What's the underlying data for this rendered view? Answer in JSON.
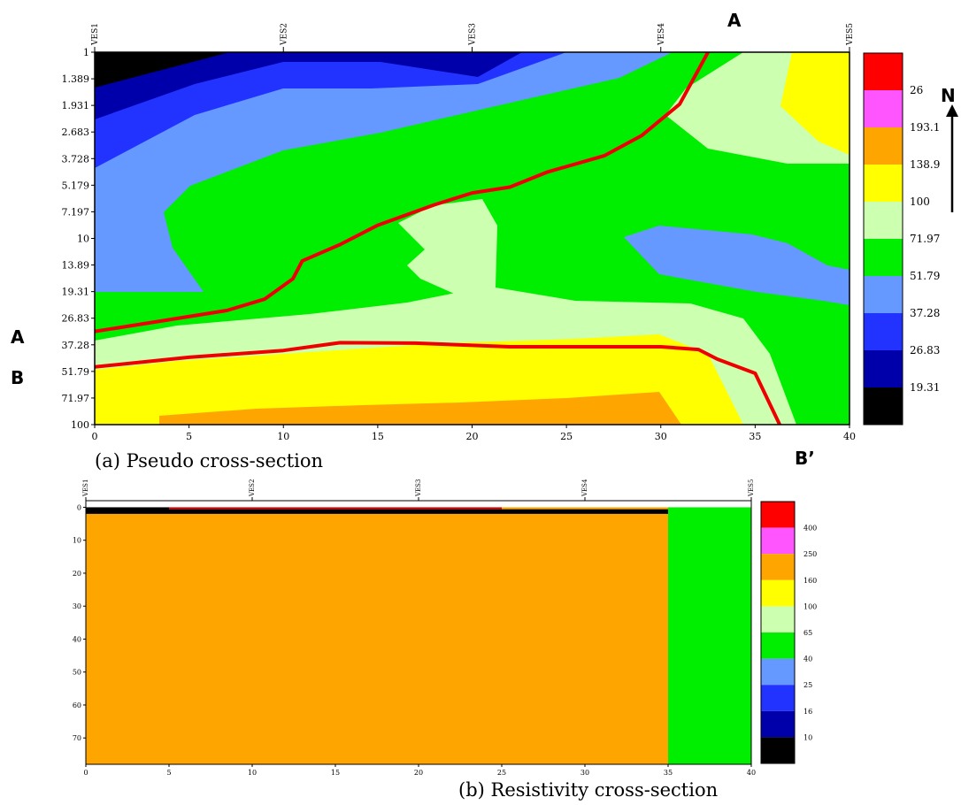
{
  "markers": {
    "a_top": "A",
    "a_left": "A",
    "b_left": "B",
    "b_prime": "B’",
    "north": "N"
  },
  "chart_data": [
    {
      "type": "heatmap",
      "caption": "(a) Pseudo cross-section",
      "x_ticks": [
        0,
        5,
        10,
        15,
        20,
        25,
        30,
        35,
        40
      ],
      "xlim": [
        0,
        40
      ],
      "y_ticks": [
        "1",
        "1.389",
        "1.931",
        "2.683",
        "3.728",
        "5.179",
        "7.197",
        "10",
        "13.89",
        "19.31",
        "26.83",
        "37.28",
        "51.79",
        "71.97",
        "100"
      ],
      "y_scale": "log",
      "ylim": [
        1,
        100
      ],
      "stations": [
        {
          "label": "VES1",
          "x": 0
        },
        {
          "label": "VES2",
          "x": 10
        },
        {
          "label": "VES3",
          "x": 20
        },
        {
          "label": "VES4",
          "x": 30
        },
        {
          "label": "VES5",
          "x": 40
        }
      ],
      "legend": {
        "placement": "right",
        "colors": [
          "#ff0000",
          "#ff55ff",
          "#ffa500",
          "#ffff00",
          "#ccffb0",
          "#00ee00",
          "#6699ff",
          "#2233ff",
          "#0000aa",
          "#000000"
        ],
        "labels": [
          "26",
          "193.1",
          "138.9",
          "100",
          "71.97",
          "51.79",
          "37.28",
          "26.83",
          "19.31"
        ]
      },
      "colors": {
        "black": "#000000",
        "navy": "#0000aa",
        "blue": "#2233ff",
        "lightblue": "#6699ff",
        "green": "#00ee00",
        "lightgreen": "#ccffb0",
        "yellow": "#ffff00",
        "orange": "#ffa500",
        "boundary": "#ee0000"
      },
      "boundary_lines": [
        {
          "name": "A–A",
          "points": [
            [
              0,
              31.6
            ],
            [
              3,
              28.3
            ],
            [
              7,
              24.4
            ],
            [
              9,
              21.2
            ],
            [
              10.5,
              16.5
            ],
            [
              11,
              13.2
            ],
            [
              13,
              10.8
            ],
            [
              15,
              8.5
            ],
            [
              18,
              6.6
            ],
            [
              20,
              5.7
            ],
            [
              22,
              5.3
            ],
            [
              24,
              4.4
            ],
            [
              27,
              3.6
            ],
            [
              29,
              2.8
            ],
            [
              31,
              1.9
            ],
            [
              32.5,
              1.0
            ]
          ]
        },
        {
          "name": "B–B’",
          "points": [
            [
              0,
              49.0
            ],
            [
              5,
              43.5
            ],
            [
              10,
              40.0
            ],
            [
              13,
              36.3
            ],
            [
              17,
              36.5
            ],
            [
              22,
              38.2
            ],
            [
              30,
              38.2
            ],
            [
              32,
              39.5
            ],
            [
              33,
              44.5
            ],
            [
              35,
              53.0
            ],
            [
              36.3,
              100
            ]
          ]
        }
      ]
    },
    {
      "type": "heatmap",
      "caption": "(b) Resistivity cross-section",
      "x_ticks": [
        0,
        5,
        10,
        15,
        20,
        25,
        30,
        35,
        40
      ],
      "xlim": [
        0,
        40
      ],
      "y_ticks": [
        0,
        10,
        20,
        30,
        40,
        50,
        60,
        70
      ],
      "ylim": [
        -2,
        78
      ],
      "stations": [
        {
          "label": "VES1",
          "x": 0
        },
        {
          "label": "VES2",
          "x": 10
        },
        {
          "label": "VES3",
          "x": 20
        },
        {
          "label": "VES4",
          "x": 30
        },
        {
          "label": "VES5",
          "x": 40
        }
      ],
      "legend": {
        "placement": "right",
        "colors": [
          "#ff0000",
          "#ff55ff",
          "#ffa500",
          "#ffff00",
          "#ccffb0",
          "#00ee00",
          "#6699ff",
          "#2233ff",
          "#0000aa",
          "#000000"
        ],
        "labels": [
          "400",
          "250",
          "160",
          "100",
          "65",
          "40",
          "25",
          "16",
          "10"
        ]
      },
      "layers": [
        {
          "x0": 0,
          "x1": 35,
          "y0": 2,
          "y1": 78,
          "color": "#ffa500"
        },
        {
          "x0": 35,
          "x1": 40,
          "y0": 0,
          "y1": 78,
          "color": "#00ee00"
        },
        {
          "x0": 0,
          "x1": 5,
          "y0": 0,
          "y1": 2,
          "color": "#000000"
        },
        {
          "x0": 5,
          "x1": 25,
          "y0": 0,
          "y1": 0.6,
          "color": "#d00000"
        },
        {
          "x0": 5,
          "x1": 25,
          "y0": 0.6,
          "y1": 2,
          "color": "#000000"
        },
        {
          "x0": 25,
          "x1": 35,
          "y0": 0,
          "y1": 0.6,
          "color": "#ffa500"
        },
        {
          "x0": 25,
          "x1": 35,
          "y0": 0.6,
          "y1": 2,
          "color": "#000000"
        }
      ]
    }
  ]
}
